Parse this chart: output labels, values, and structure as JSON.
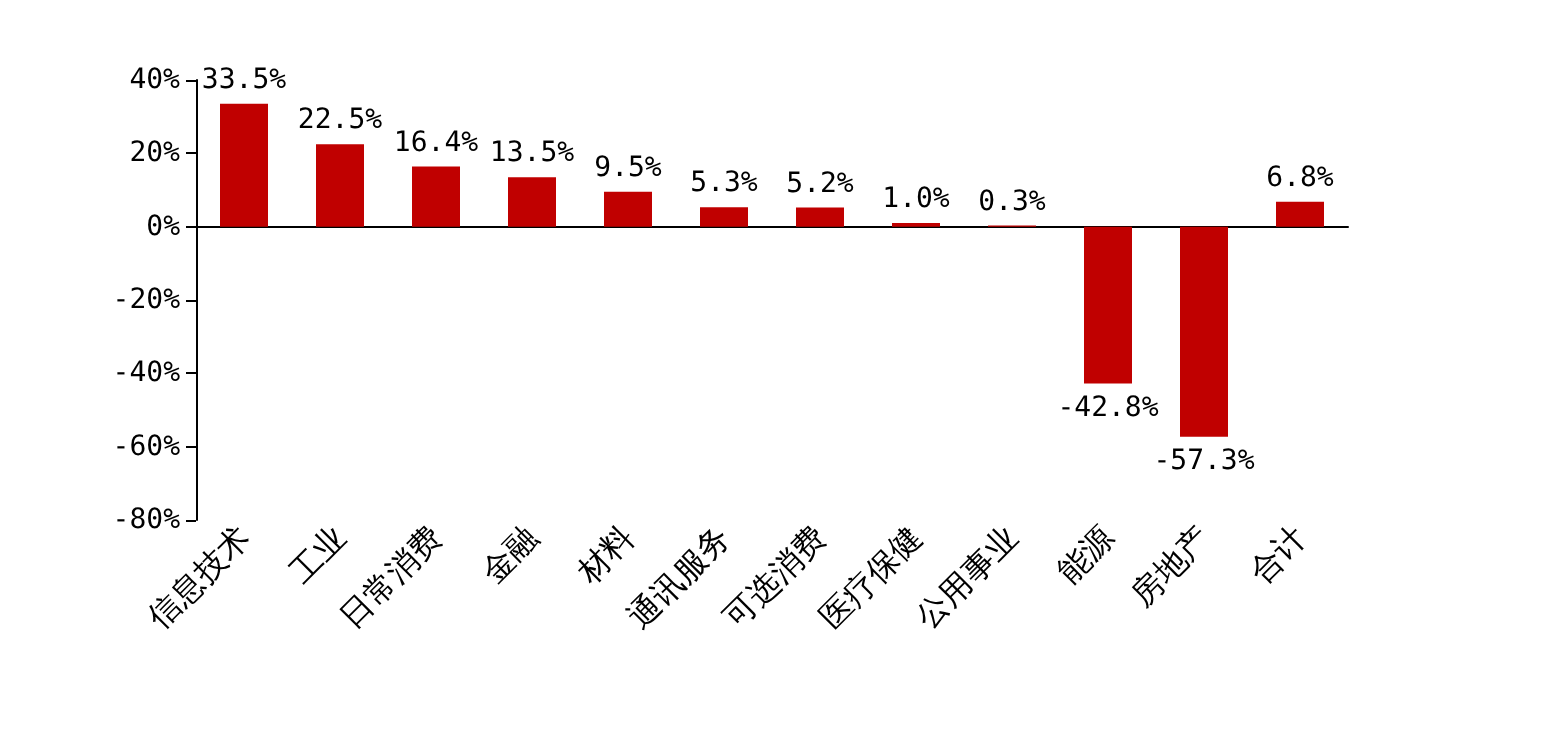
{
  "chart_data": {
    "type": "bar",
    "categories": [
      "信息技术",
      "工业",
      "日常消费",
      "金融",
      "材料",
      "通讯服务",
      "可选消费",
      "医疗保健",
      "公用事业",
      "能源",
      "房地产",
      "合计"
    ],
    "values": [
      33.5,
      22.5,
      16.4,
      13.5,
      9.5,
      5.3,
      5.2,
      1.0,
      0.3,
      -42.8,
      -57.3,
      6.8
    ],
    "value_labels": [
      "33.5%",
      "22.5%",
      "16.4%",
      "13.5%",
      "9.5%",
      "5.3%",
      "5.2%",
      "1.0%",
      "0.3%",
      "-42.8%",
      "-57.3%",
      "6.8%"
    ],
    "color": "#c00000",
    "ylim": [
      -80,
      40
    ],
    "yticks": [
      {
        "value": -80,
        "label": "-80%"
      },
      {
        "value": -60,
        "label": "-60%"
      },
      {
        "value": -40,
        "label": "-40%"
      },
      {
        "value": -20,
        "label": "-20%"
      },
      {
        "value": 0,
        "label": "0%"
      },
      {
        "value": 20,
        "label": "20%"
      },
      {
        "value": 40,
        "label": "40%"
      }
    ]
  }
}
